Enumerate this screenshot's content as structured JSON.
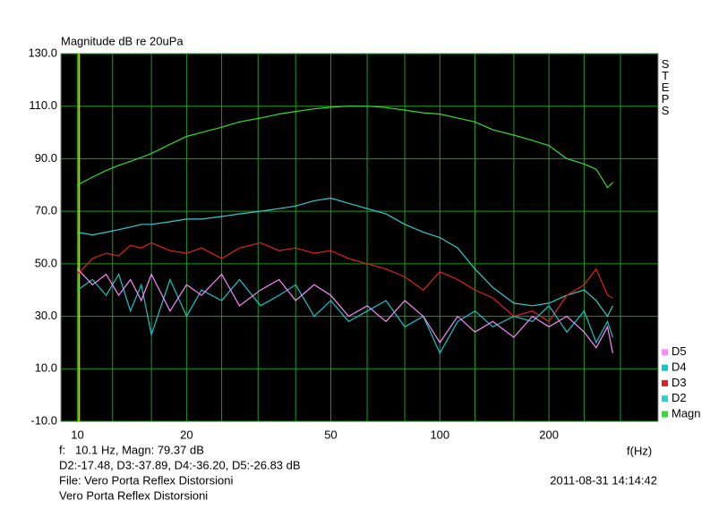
{
  "chart_data": {
    "type": "line",
    "y_label": "Magnitude dB re 20uPa",
    "x_label": "f(Hz)",
    "right_label": "STEPS",
    "xscale": "log",
    "xlim": [
      9,
      400
    ],
    "ylim": [
      -10,
      130
    ],
    "xticks": [
      10,
      20,
      50,
      100,
      200
    ],
    "xgrid": [
      10,
      12.5,
      16,
      20,
      25,
      31.5,
      40,
      50,
      63,
      80,
      100,
      125,
      160,
      200,
      250,
      315
    ],
    "yticks": [
      {
        "value": 130,
        "label": "130.0"
      },
      {
        "value": 110,
        "label": "110.0"
      },
      {
        "value": 90,
        "label": "90.0"
      },
      {
        "value": 70,
        "label": "70.0"
      },
      {
        "value": 50,
        "label": "50.0"
      },
      {
        "value": 30,
        "label": "30.0"
      },
      {
        "value": 10,
        "label": "10.0"
      },
      {
        "value": -10,
        "label": "-10.0"
      }
    ],
    "grid": true,
    "legend": "bottom-right",
    "cursor": 10.1,
    "cursor_color": "#c8c800",
    "x": [
      10,
      11,
      12,
      13,
      14,
      15,
      16,
      18,
      20,
      22,
      25,
      28,
      32,
      36,
      40,
      45,
      50,
      56,
      63,
      71,
      80,
      90,
      100,
      112,
      125,
      140,
      160,
      180,
      200,
      224,
      250,
      270,
      290,
      300
    ],
    "series": [
      {
        "name": "Magn",
        "color": "#33dd33",
        "values": [
          80,
          83,
          85.5,
          87.5,
          89,
          90.5,
          92,
          95.5,
          98.5,
          100,
          102,
          104,
          105.5,
          107,
          108,
          109,
          109.6,
          110,
          110,
          109.5,
          108.5,
          107.5,
          107,
          105.5,
          104,
          101,
          99,
          97,
          95,
          90,
          88,
          86,
          79,
          81
        ]
      },
      {
        "name": "D2",
        "color": "#33cccc",
        "values": [
          62,
          61,
          62,
          63,
          64,
          65,
          65,
          66,
          67,
          67,
          68,
          69,
          70,
          71,
          72,
          74,
          75,
          73,
          71,
          69,
          65,
          62,
          60,
          56,
          48,
          41,
          35,
          34,
          35,
          38,
          40,
          36,
          30,
          34
        ]
      },
      {
        "name": "D3",
        "color": "#dd2222",
        "values": [
          46,
          52,
          54,
          53,
          57,
          56,
          58,
          55,
          54,
          56,
          52,
          56,
          58,
          55,
          56,
          54,
          55,
          52,
          50,
          48,
          45,
          40,
          47,
          44,
          40,
          37,
          30,
          32,
          28,
          38,
          42,
          48,
          38,
          37
        ]
      },
      {
        "name": "D4",
        "color": "#11c8c8",
        "values": [
          40,
          44,
          38,
          46,
          32,
          42,
          23,
          44,
          30,
          40,
          36,
          44,
          34,
          38,
          42,
          30,
          36,
          28,
          32,
          36,
          26,
          30,
          16,
          28,
          32,
          26,
          30,
          28,
          34,
          24,
          32,
          20,
          28,
          22
        ]
      },
      {
        "name": "D5",
        "color": "#ff88ff",
        "values": [
          48,
          42,
          46,
          38,
          44,
          36,
          46,
          32,
          42,
          38,
          46,
          34,
          40,
          44,
          36,
          42,
          38,
          30,
          34,
          28,
          36,
          30,
          20,
          30,
          24,
          28,
          22,
          30,
          26,
          30,
          24,
          18,
          26,
          16
        ]
      }
    ]
  },
  "info": {
    "line1": "f:   10.1 Hz, Magn: 79.37 dB",
    "line2": "D2:-17.48, D3:-37.89, D4:-36.20, D5:-26.83 dB",
    "file": "File: Vero Porta Reflex Distorsioni",
    "name": "Vero Porta Reflex Distorsioni",
    "timestamp": "2011-08-31 14:14:42"
  }
}
